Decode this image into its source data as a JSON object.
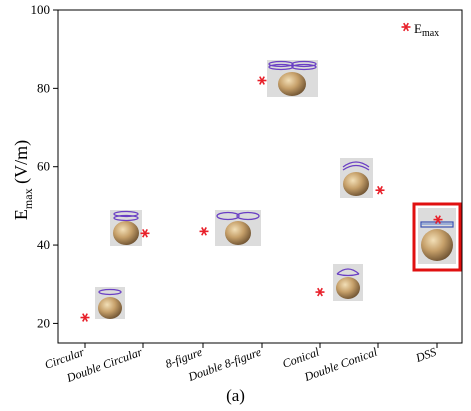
{
  "chart_data": {
    "type": "scatter",
    "categories": [
      "Circular",
      "Double Circular",
      "8-figure",
      "Double 8-figure",
      "Conical",
      "Double Conical",
      "DSS"
    ],
    "series": [
      {
        "name": "E",
        "name_sub": "max",
        "values": [
          21.5,
          43,
          43.5,
          82,
          28,
          54,
          46.5
        ]
      }
    ],
    "ylabel": "E",
    "ylabel_sub": "max",
    "ylabel_unit": " (V/m)",
    "ylim": [
      15,
      100
    ],
    "yticks": [
      20,
      40,
      60,
      80,
      100
    ],
    "grid": false,
    "legend": "top-right",
    "marker": "asterisk",
    "marker_color": "#e8202a",
    "highlight_category": "DSS",
    "highlight_color": "#e01010"
  },
  "caption": "(a)"
}
